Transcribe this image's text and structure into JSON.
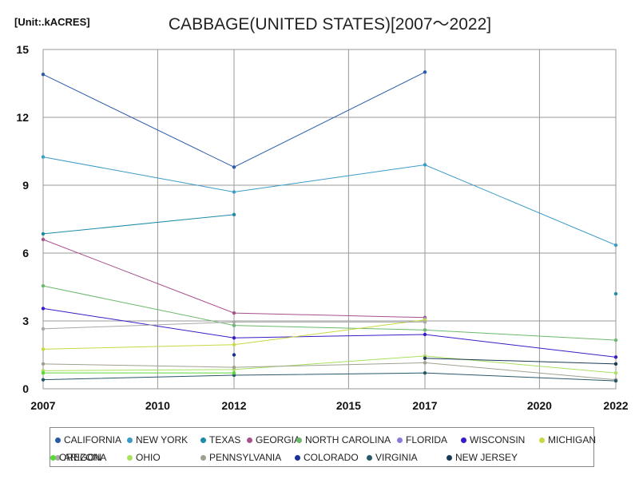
{
  "chart_data": {
    "type": "line",
    "title": "CABBAGE(UNITED STATES)[2007～2022]",
    "unit_label": "[Unit:.kACRES]",
    "xlabel": "",
    "ylabel": "",
    "xlim": [
      2007,
      2022
    ],
    "ylim": [
      0,
      15
    ],
    "x_ticks": [
      2007,
      2010,
      2012,
      2015,
      2017,
      2020,
      2022
    ],
    "y_ticks": [
      0,
      3,
      6,
      9,
      12,
      15
    ],
    "grid": true,
    "legend_position": "bottom",
    "series": [
      {
        "name": "CALIFORNIA",
        "color": "#2b5aa8",
        "points": [
          [
            2007,
            13.9
          ],
          [
            2012,
            9.8
          ],
          [
            2017,
            14.0
          ],
          [
            2022,
            null
          ]
        ]
      },
      {
        "name": "NEW YORK",
        "color": "#3a9ac8",
        "points": [
          [
            2007,
            10.25
          ],
          [
            2012,
            8.7
          ],
          [
            2017,
            9.9
          ],
          [
            2022,
            6.35
          ]
        ]
      },
      {
        "name": "TEXAS",
        "color": "#1c8aa8",
        "points": [
          [
            2007,
            6.85
          ],
          [
            2012,
            7.7
          ],
          [
            2017,
            null
          ],
          [
            2022,
            4.2
          ]
        ]
      },
      {
        "name": "GEORGIA",
        "color": "#a8508c",
        "points": [
          [
            2007,
            6.6
          ],
          [
            2012,
            3.35
          ],
          [
            2017,
            3.15
          ],
          [
            2022,
            null
          ]
        ]
      },
      {
        "name": "NORTH CAROLINA",
        "color": "#6cb86c",
        "points": [
          [
            2007,
            4.55
          ],
          [
            2012,
            2.8
          ],
          [
            2017,
            2.6
          ],
          [
            2022,
            2.15
          ]
        ]
      },
      {
        "name": "FLORIDA",
        "color": "#8c7ad8",
        "points": [
          [
            2007,
            null
          ],
          [
            2012,
            null
          ],
          [
            2017,
            3.1
          ],
          [
            2022,
            null
          ]
        ]
      },
      {
        "name": "WISCONSIN",
        "color": "#3a1ac8",
        "points": [
          [
            2007,
            3.55
          ],
          [
            2012,
            2.25
          ],
          [
            2017,
            2.4
          ],
          [
            2022,
            1.4
          ]
        ]
      },
      {
        "name": "MICHIGAN",
        "color": "#c8d840",
        "points": [
          [
            2007,
            1.75
          ],
          [
            2012,
            1.95
          ],
          [
            2017,
            3.05
          ],
          [
            2022,
            null
          ]
        ]
      },
      {
        "name": "ARIZONA",
        "color": "#a8a8a8",
        "points": [
          [
            2007,
            2.65
          ],
          [
            2012,
            2.95
          ],
          [
            2017,
            2.95
          ],
          [
            2022,
            null
          ]
        ]
      },
      {
        "name": "OHIO",
        "color": "#a8e060",
        "points": [
          [
            2007,
            0.8
          ],
          [
            2012,
            0.85
          ],
          [
            2017,
            1.45
          ],
          [
            2022,
            0.7
          ]
        ]
      },
      {
        "name": "PENNSYLVANIA",
        "color": "#a0a090",
        "points": [
          [
            2007,
            1.1
          ],
          [
            2012,
            0.95
          ],
          [
            2017,
            1.15
          ],
          [
            2022,
            0.4
          ]
        ]
      },
      {
        "name": "COLORADO",
        "color": "#18309a",
        "points": [
          [
            2007,
            null
          ],
          [
            2012,
            1.5
          ],
          [
            2017,
            null
          ],
          [
            2022,
            null
          ]
        ]
      },
      {
        "name": "VIRGINIA",
        "color": "#285868",
        "points": [
          [
            2007,
            0.4
          ],
          [
            2012,
            0.6
          ],
          [
            2017,
            0.7
          ],
          [
            2022,
            0.35
          ]
        ]
      },
      {
        "name": "NEW JERSEY",
        "color": "#1a3a58",
        "points": [
          [
            2007,
            null
          ],
          [
            2012,
            null
          ],
          [
            2017,
            1.35
          ],
          [
            2022,
            1.1
          ]
        ]
      },
      {
        "name": "OREGON",
        "color": "#5ad838",
        "points": [
          [
            2007,
            0.7
          ],
          [
            2012,
            0.7
          ],
          [
            2017,
            null
          ],
          [
            2022,
            null
          ]
        ]
      }
    ]
  }
}
